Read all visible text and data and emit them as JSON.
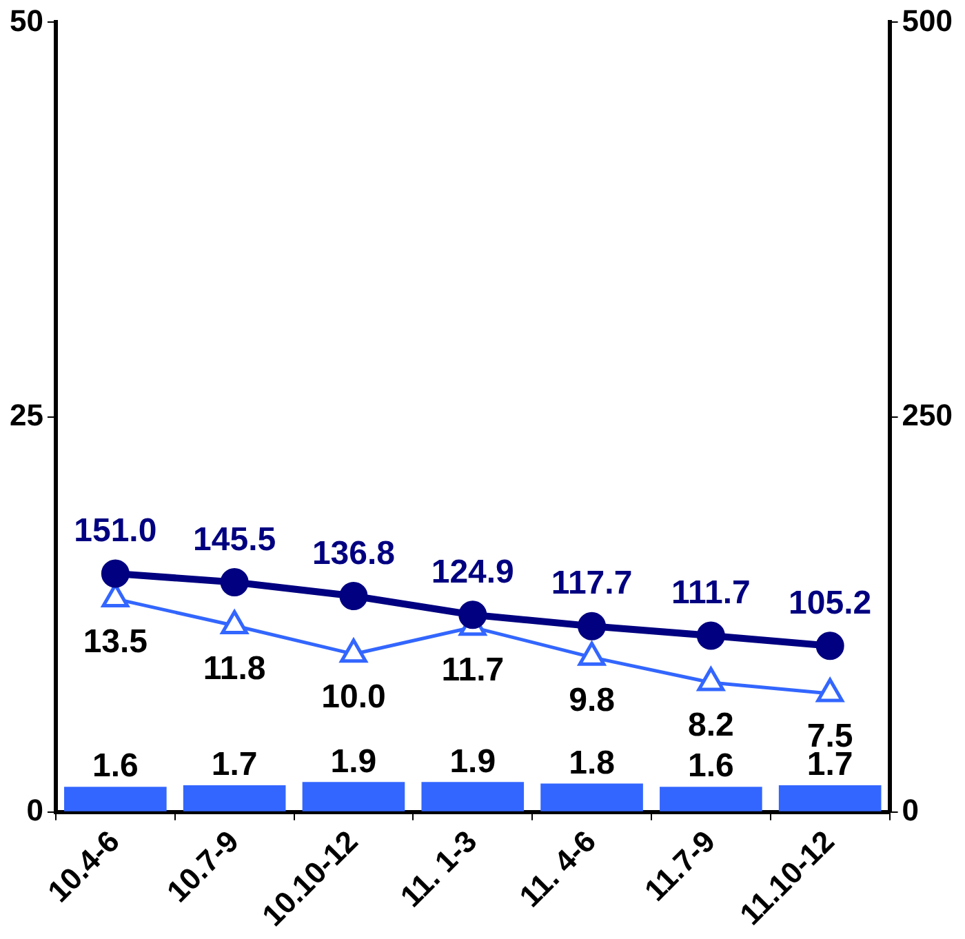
{
  "chart_data": {
    "type": "bar",
    "categories": [
      "10.4-6",
      "10.7-9",
      "10.10-12",
      "11. 1-3",
      "11. 4-6",
      "11.7-9",
      "11.10-12"
    ],
    "series": [
      {
        "color": "#3366ff",
        "values": [
          1.6,
          1.7,
          1.9,
          1.9,
          1.8,
          1.6,
          1.7
        ],
        "value_labels": [
          "1.6",
          "1.7",
          "1.9",
          "1.9",
          "1.8",
          "1.6",
          "1.7"
        ]
      },
      {
        "type": "line",
        "axis": "y2",
        "color": "#000080",
        "marker": "circle",
        "values": [
          151.0,
          145.5,
          136.8,
          124.9,
          117.7,
          111.7,
          105.2
        ],
        "value_labels": [
          "151.0",
          "145.5",
          "136.8",
          "124.9",
          "117.7",
          "111.7",
          "105.2"
        ]
      },
      {
        "type": "line",
        "color": "#3366ff",
        "marker": "triangle",
        "values": [
          13.5,
          11.8,
          10.0,
          11.7,
          9.8,
          8.2,
          7.5
        ],
        "value_labels": [
          "13.5",
          "11.8",
          "10.0",
          "11.7",
          "9.8",
          "8.2",
          "7.5"
        ]
      }
    ],
    "ylim": [
      0,
      50
    ],
    "yticks": [
      0,
      25,
      50
    ],
    "y2lim": [
      0,
      500
    ],
    "y2ticks": [
      0,
      250,
      500
    ],
    "grid": false,
    "legend": false
  }
}
